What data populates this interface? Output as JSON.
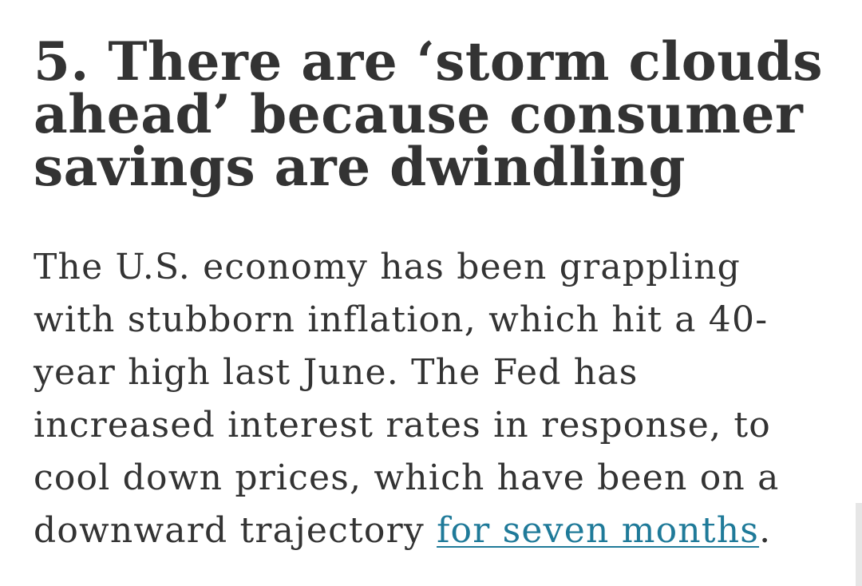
{
  "article": {
    "headline": "5. There are ‘storm clouds ahead’ because consumer savings are dwindling",
    "paragraph": {
      "text_before_link": "The U.S. economy has been grappling with stubborn inflation, which hit a 40-year high last June. The Fed has increased interest rates in response, to cool down prices, which have been on a downward trajectory ",
      "link_text": "for seven months",
      "text_after_link": "."
    }
  },
  "colors": {
    "text": "#333333",
    "link": "#1f7a99",
    "background": "#ffffff"
  }
}
